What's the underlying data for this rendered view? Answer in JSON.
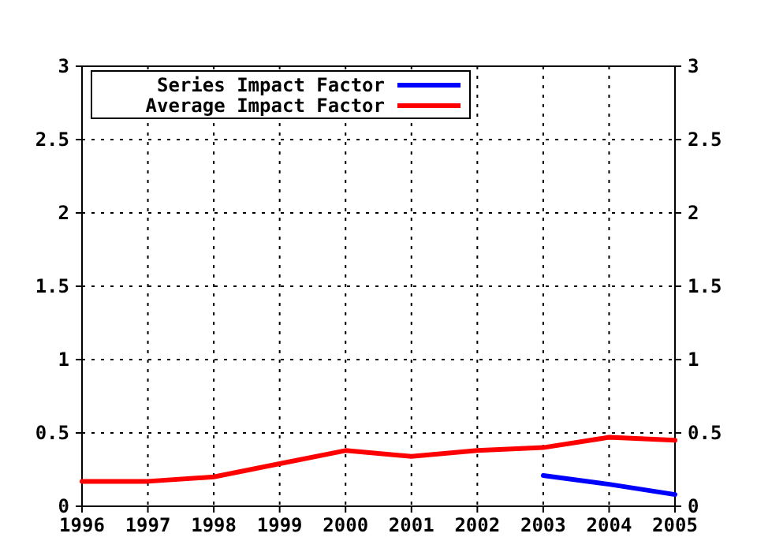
{
  "chart_data": {
    "type": "line",
    "x": [
      1996,
      1997,
      1998,
      1999,
      2000,
      2001,
      2002,
      2003,
      2004,
      2005
    ],
    "series": [
      {
        "name": "Series Impact Factor",
        "color": "#0000ff",
        "x": [
          2003,
          2004,
          2005
        ],
        "values": [
          0.21,
          0.15,
          0.08
        ]
      },
      {
        "name": "Average Impact Factor",
        "color": "#ff0000",
        "values": [
          0.17,
          0.17,
          0.2,
          0.29,
          0.38,
          0.34,
          0.38,
          0.4,
          0.47,
          0.45
        ]
      }
    ],
    "xlim": [
      1996,
      2005
    ],
    "xticks": [
      1996,
      1997,
      1998,
      1999,
      2000,
      2001,
      2002,
      2003,
      2004,
      2005
    ],
    "ylim": [
      0,
      3
    ],
    "yticks": [
      0,
      0.5,
      1,
      1.5,
      2,
      2.5,
      3
    ],
    "y2lim": [
      0,
      3
    ],
    "y2ticks": [
      0,
      0.5,
      1,
      1.5,
      2,
      2.5,
      3
    ],
    "grid": true,
    "legend": "top left",
    "line_style": "solid",
    "marker": "none"
  }
}
